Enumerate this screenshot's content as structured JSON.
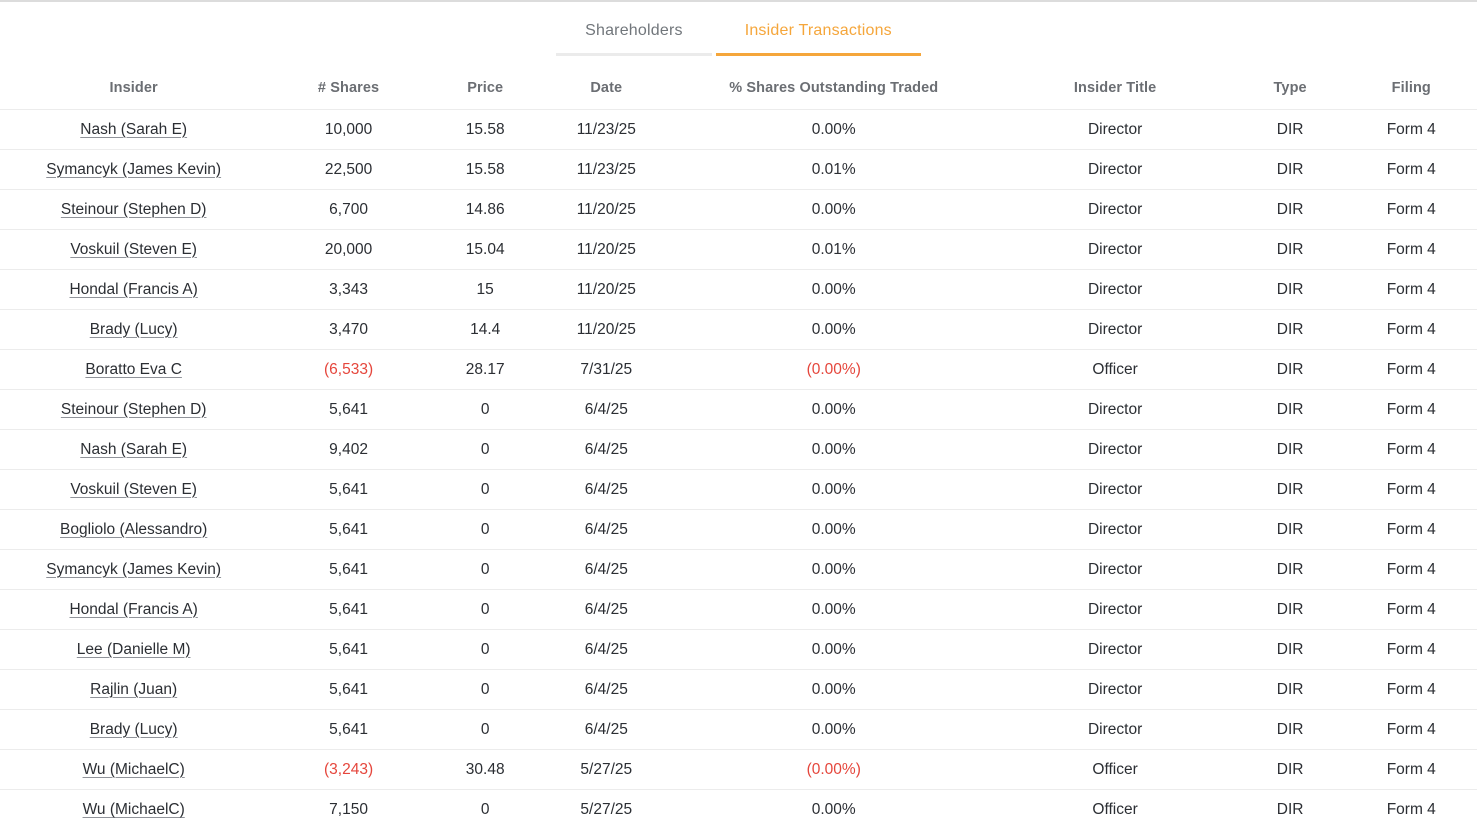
{
  "tabs": [
    {
      "label": "Shareholders",
      "active": false
    },
    {
      "label": "Insider Transactions",
      "active": true
    }
  ],
  "table": {
    "columns": [
      "Insider",
      "# Shares",
      "Price",
      "Date",
      "% Shares Outstanding Traded",
      "Insider Title",
      "Type",
      "Filing"
    ],
    "rows": [
      {
        "insider": "Nash (Sarah E)",
        "shares": "10,000",
        "price": "15.58",
        "date": "11/23/25",
        "pct": "0.00%",
        "title": "Director",
        "type": "DIR",
        "filing": "Form 4",
        "negative": false
      },
      {
        "insider": "Symancyk (James Kevin)",
        "shares": "22,500",
        "price": "15.58",
        "date": "11/23/25",
        "pct": "0.01%",
        "title": "Director",
        "type": "DIR",
        "filing": "Form 4",
        "negative": false
      },
      {
        "insider": "Steinour (Stephen D)",
        "shares": "6,700",
        "price": "14.86",
        "date": "11/20/25",
        "pct": "0.00%",
        "title": "Director",
        "type": "DIR",
        "filing": "Form 4",
        "negative": false
      },
      {
        "insider": "Voskuil (Steven E)",
        "shares": "20,000",
        "price": "15.04",
        "date": "11/20/25",
        "pct": "0.01%",
        "title": "Director",
        "type": "DIR",
        "filing": "Form 4",
        "negative": false
      },
      {
        "insider": "Hondal (Francis A)",
        "shares": "3,343",
        "price": "15",
        "date": "11/20/25",
        "pct": "0.00%",
        "title": "Director",
        "type": "DIR",
        "filing": "Form 4",
        "negative": false
      },
      {
        "insider": "Brady (Lucy)",
        "shares": "3,470",
        "price": "14.4",
        "date": "11/20/25",
        "pct": "0.00%",
        "title": "Director",
        "type": "DIR",
        "filing": "Form 4",
        "negative": false
      },
      {
        "insider": "Boratto Eva C",
        "shares": "(6,533)",
        "price": "28.17",
        "date": "7/31/25",
        "pct": "(0.00%)",
        "title": "Officer",
        "type": "DIR",
        "filing": "Form 4",
        "negative": true
      },
      {
        "insider": "Steinour (Stephen D)",
        "shares": "5,641",
        "price": "0",
        "date": "6/4/25",
        "pct": "0.00%",
        "title": "Director",
        "type": "DIR",
        "filing": "Form 4",
        "negative": false
      },
      {
        "insider": "Nash (Sarah E)",
        "shares": "9,402",
        "price": "0",
        "date": "6/4/25",
        "pct": "0.00%",
        "title": "Director",
        "type": "DIR",
        "filing": "Form 4",
        "negative": false
      },
      {
        "insider": "Voskuil (Steven E)",
        "shares": "5,641",
        "price": "0",
        "date": "6/4/25",
        "pct": "0.00%",
        "title": "Director",
        "type": "DIR",
        "filing": "Form 4",
        "negative": false
      },
      {
        "insider": "Bogliolo (Alessandro)",
        "shares": "5,641",
        "price": "0",
        "date": "6/4/25",
        "pct": "0.00%",
        "title": "Director",
        "type": "DIR",
        "filing": "Form 4",
        "negative": false
      },
      {
        "insider": "Symancyk (James Kevin)",
        "shares": "5,641",
        "price": "0",
        "date": "6/4/25",
        "pct": "0.00%",
        "title": "Director",
        "type": "DIR",
        "filing": "Form 4",
        "negative": false
      },
      {
        "insider": "Hondal (Francis A)",
        "shares": "5,641",
        "price": "0",
        "date": "6/4/25",
        "pct": "0.00%",
        "title": "Director",
        "type": "DIR",
        "filing": "Form 4",
        "negative": false
      },
      {
        "insider": "Lee (Danielle M)",
        "shares": "5,641",
        "price": "0",
        "date": "6/4/25",
        "pct": "0.00%",
        "title": "Director",
        "type": "DIR",
        "filing": "Form 4",
        "negative": false
      },
      {
        "insider": "Rajlin (Juan)",
        "shares": "5,641",
        "price": "0",
        "date": "6/4/25",
        "pct": "0.00%",
        "title": "Director",
        "type": "DIR",
        "filing": "Form 4",
        "negative": false
      },
      {
        "insider": "Brady (Lucy)",
        "shares": "5,641",
        "price": "0",
        "date": "6/4/25",
        "pct": "0.00%",
        "title": "Director",
        "type": "DIR",
        "filing": "Form 4",
        "negative": false
      },
      {
        "insider": "Wu (MichaelC)",
        "shares": "(3,243)",
        "price": "30.48",
        "date": "5/27/25",
        "pct": "(0.00%)",
        "title": "Officer",
        "type": "DIR",
        "filing": "Form 4",
        "negative": true
      },
      {
        "insider": "Wu (MichaelC)",
        "shares": "7,150",
        "price": "0",
        "date": "5/27/25",
        "pct": "0.00%",
        "title": "Officer",
        "type": "DIR",
        "filing": "Form 4",
        "negative": false
      }
    ]
  },
  "colors": {
    "accent_orange": "#F5A63B",
    "negative_red": "#E5463C",
    "text_dark": "#2B2E33",
    "header_gray": "#6B6E73",
    "tab_inactive_gray": "#71767B",
    "divider": "#ECECEC"
  }
}
